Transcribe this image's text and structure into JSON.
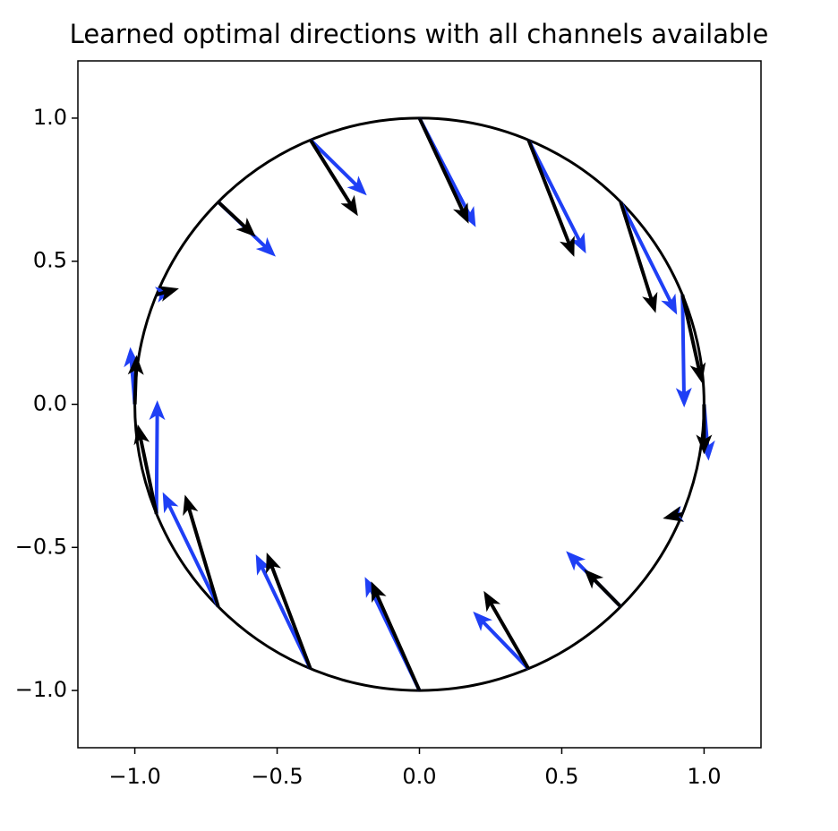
{
  "chart_data": {
    "type": "quiver",
    "title": "Learned optimal directions with all channels available",
    "x": [
      0,
      -0.383,
      -0.707,
      -0.924,
      -1,
      -0.924,
      -0.707,
      -0.383,
      0,
      0.383,
      0.707,
      0.924,
      1,
      0.924,
      0.707,
      0.383
    ],
    "y": [
      1,
      0.924,
      0.707,
      0.383,
      0,
      -0.383,
      -0.707,
      -0.924,
      -1,
      -0.924,
      -0.707,
      -0.383,
      0,
      0.383,
      0.707,
      0.924
    ],
    "series": [
      {
        "color": "#1f3ff5",
        "u": [
          0.198,
          0.198,
          0.202,
          0.05,
          -0.016,
          0.003,
          -0.195,
          -0.192,
          -0.192,
          -0.195,
          -0.192,
          -0.05,
          0.016,
          0.006,
          0.198,
          0.202
        ],
        "v": [
          -0.381,
          -0.194,
          -0.191,
          0.01,
          0.2,
          0.397,
          0.4,
          0.4,
          0.397,
          0.2,
          0.194,
          -0.01,
          -0.197,
          -0.394,
          -0.394,
          -0.397
        ]
      },
      {
        "color": "#000000",
        "u": [
          0.173,
          0.167,
          0.132,
          0.079,
          0.006,
          -0.066,
          -0.117,
          -0.154,
          -0.17,
          -0.157,
          -0.129,
          -0.069,
          0,
          0.069,
          0.123,
          0.161
        ],
        "v": [
          -0.369,
          -0.266,
          -0.122,
          0.022,
          0.172,
          0.313,
          0.391,
          0.406,
          0.381,
          0.272,
          0.131,
          -0.016,
          -0.175,
          -0.309,
          -0.388,
          -0.409
        ]
      }
    ],
    "circle": {
      "center": [
        0,
        0
      ],
      "radius": 1,
      "color": "#000000"
    },
    "xlim": [
      -1.2,
      1.2
    ],
    "ylim": [
      -1.2,
      1.2
    ],
    "xticks": [
      {
        "value": -1,
        "label": "−1.0"
      },
      {
        "value": -0.5,
        "label": "−0.5"
      },
      {
        "value": 0,
        "label": "0.0"
      },
      0.5,
      {
        "value": 1,
        "label": "1.0"
      }
    ],
    "yticks": [
      {
        "value": -1,
        "label": "−1.0"
      },
      {
        "value": -0.5,
        "label": "−0.5"
      },
      {
        "value": 0,
        "label": "0.0"
      },
      0.5,
      {
        "value": 1,
        "label": "1.0"
      }
    ]
  }
}
